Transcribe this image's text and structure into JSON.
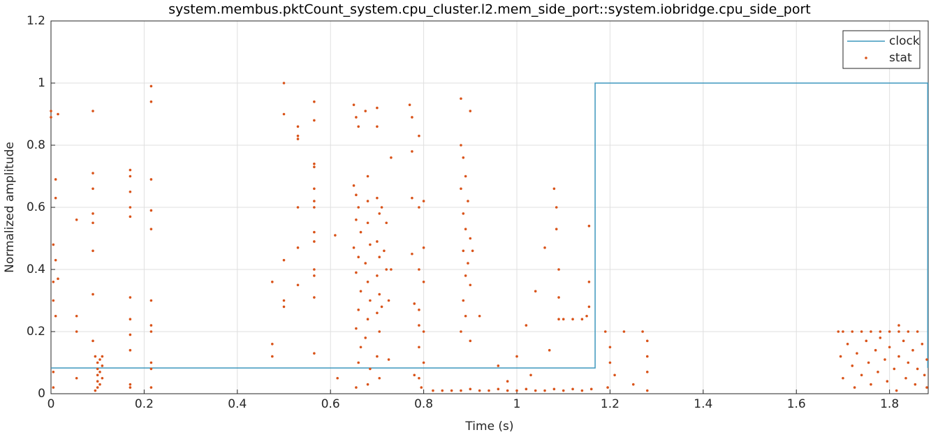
{
  "chart_data": {
    "type": "line",
    "title": "system.membus.pktCount_system.cpu_cluster.l2.mem_side_port::system.iobridge.cpu_side_port",
    "xlabel": "Time (s)",
    "ylabel": "Normalized amplitude",
    "xlim": [
      0,
      1.883
    ],
    "ylim": [
      0,
      1.2
    ],
    "xticks": [
      0,
      0.2,
      0.4,
      0.6,
      0.8,
      1,
      1.2,
      1.4,
      1.6,
      1.8
    ],
    "yticks": [
      0,
      0.2,
      0.4,
      0.6,
      0.8,
      1,
      1.2
    ],
    "grid": true,
    "legend": "northeast",
    "series": [
      {
        "name": "clock",
        "mode": "line",
        "color": "#3d97bd",
        "x": [
          0,
          1.168,
          1.168,
          1.882,
          1.882
        ],
        "values": [
          0.083,
          0.083,
          1,
          1,
          0.083
        ]
      },
      {
        "name": "stat",
        "mode": "markers",
        "color": "#d95319",
        "x": [
          0,
          0,
          0.005,
          0.005,
          0.005,
          0.005,
          0.005,
          0.01,
          0.01,
          0.01,
          0.01,
          0.015,
          0.015,
          0.055,
          0.055,
          0.055,
          0.055,
          0.09,
          0.09,
          0.09,
          0.09,
          0.09,
          0.09,
          0.09,
          0.09,
          0.095,
          0.1,
          0.1,
          0.1,
          0.1,
          0.1,
          0.105,
          0.105,
          0.105,
          0.11,
          0.11,
          0.11,
          0.095,
          0.17,
          0.17,
          0.17,
          0.17,
          0.17,
          0.17,
          0.17,
          0.17,
          0.17,
          0.17,
          0.17,
          0.215,
          0.215,
          0.215,
          0.215,
          0.215,
          0.215,
          0.215,
          0.215,
          0.215,
          0.215,
          0.215,
          0.475,
          0.475,
          0.475,
          0.5,
          0.5,
          0.5,
          0.5,
          0.5,
          0.53,
          0.53,
          0.53,
          0.53,
          0.53,
          0.53,
          0.565,
          0.565,
          0.565,
          0.565,
          0.565,
          0.565,
          0.565,
          0.565,
          0.565,
          0.565,
          0.565,
          0.565,
          0.565,
          0.61,
          0.615,
          0.65,
          0.655,
          0.66,
          0.65,
          0.655,
          0.66,
          0.655,
          0.665,
          0.65,
          0.66,
          0.655,
          0.665,
          0.66,
          0.655,
          0.665,
          0.66,
          0.655,
          0.675,
          0.68,
          0.68,
          0.68,
          0.685,
          0.675,
          0.68,
          0.685,
          0.68,
          0.675,
          0.685,
          0.68,
          0.7,
          0.7,
          0.7,
          0.705,
          0.7,
          0.705,
          0.7,
          0.705,
          0.7,
          0.705,
          0.7,
          0.705,
          0.71,
          0.715,
          0.71,
          0.72,
          0.72,
          0.725,
          0.725,
          0.73,
          0.73,
          0.77,
          0.775,
          0.775,
          0.775,
          0.775,
          0.78,
          0.78,
          0.79,
          0.79,
          0.79,
          0.79,
          0.79,
          0.79,
          0.79,
          0.795,
          0.8,
          0.8,
          0.8,
          0.8,
          0.8,
          0.82,
          0.84,
          0.86,
          0.88,
          0.9,
          0.92,
          0.94,
          0.96,
          0.98,
          1,
          1.02,
          1.04,
          1.06,
          1.08,
          1.1,
          1.12,
          1.14,
          1.16,
          0.88,
          0.9,
          0.88,
          0.885,
          0.89,
          0.88,
          0.895,
          0.885,
          0.89,
          0.9,
          0.885,
          0.895,
          0.89,
          0.9,
          0.885,
          0.89,
          0.88,
          0.9,
          0.92,
          0.905,
          0.96,
          0.98,
          1,
          1.02,
          1.03,
          1.04,
          1.06,
          1.07,
          1.08,
          1.085,
          1.085,
          1.09,
          1.09,
          1.09,
          1.1,
          1.12,
          1.14,
          1.155,
          1.155,
          1.155,
          1.15,
          1.19,
          1.2,
          1.2,
          1.21,
          1.195,
          1.23,
          1.25,
          1.27,
          1.28,
          1.28,
          1.28,
          1.28,
          1.69,
          1.7,
          1.72,
          1.74,
          1.76,
          1.78,
          1.8,
          1.82,
          1.84,
          1.86,
          1.695,
          1.7,
          1.71,
          1.72,
          1.725,
          1.73,
          1.74,
          1.75,
          1.755,
          1.76,
          1.77,
          1.775,
          1.78,
          1.79,
          1.795,
          1.8,
          1.81,
          1.815,
          1.82,
          1.83,
          1.835,
          1.84,
          1.85,
          1.855,
          1.86,
          1.87,
          1.875,
          1.88,
          1.88,
          1.82
        ],
        "values": [
          0.91,
          0.89,
          0.48,
          0.36,
          0.3,
          0.07,
          0.02,
          0.69,
          0.63,
          0.43,
          0.25,
          0.9,
          0.37,
          0.56,
          0.25,
          0.2,
          0.05,
          0.91,
          0.71,
          0.66,
          0.58,
          0.55,
          0.46,
          0.32,
          0.17,
          0.12,
          0.1,
          0.08,
          0.06,
          0.04,
          0.02,
          0.11,
          0.07,
          0.03,
          0.12,
          0.09,
          0.05,
          0.01,
          0.72,
          0.7,
          0.65,
          0.6,
          0.57,
          0.31,
          0.24,
          0.19,
          0.14,
          0.03,
          0.02,
          0.99,
          0.94,
          0.69,
          0.59,
          0.53,
          0.3,
          0.22,
          0.2,
          0.1,
          0.08,
          0.02,
          0.36,
          0.16,
          0.12,
          1,
          0.9,
          0.43,
          0.3,
          0.28,
          0.86,
          0.83,
          0.82,
          0.6,
          0.47,
          0.35,
          0.94,
          0.88,
          0.74,
          0.73,
          0.66,
          0.62,
          0.6,
          0.52,
          0.49,
          0.4,
          0.38,
          0.31,
          0.13,
          0.51,
          0.05,
          0.93,
          0.89,
          0.86,
          0.67,
          0.64,
          0.6,
          0.56,
          0.52,
          0.47,
          0.44,
          0.39,
          0.33,
          0.27,
          0.21,
          0.15,
          0.1,
          0.02,
          0.91,
          0.7,
          0.62,
          0.55,
          0.48,
          0.42,
          0.36,
          0.3,
          0.24,
          0.18,
          0.08,
          0.03,
          0.92,
          0.86,
          0.63,
          0.58,
          0.49,
          0.44,
          0.38,
          0.32,
          0.26,
          0.2,
          0.12,
          0.05,
          0.6,
          0.46,
          0.28,
          0.55,
          0.4,
          0.3,
          0.11,
          0.76,
          0.4,
          0.93,
          0.89,
          0.78,
          0.63,
          0.45,
          0.29,
          0.06,
          0.83,
          0.6,
          0.4,
          0.27,
          0.22,
          0.15,
          0.05,
          0.02,
          0.62,
          0.47,
          0.36,
          0.2,
          0.1,
          0.01,
          0.01,
          0.01,
          0.01,
          0.015,
          0.01,
          0.01,
          0.015,
          0.01,
          0.01,
          0.015,
          0.01,
          0.01,
          0.015,
          0.01,
          0.015,
          0.01,
          0.015,
          0.95,
          0.91,
          0.8,
          0.76,
          0.7,
          0.66,
          0.62,
          0.58,
          0.53,
          0.5,
          0.46,
          0.42,
          0.38,
          0.35,
          0.3,
          0.25,
          0.2,
          0.17,
          0.25,
          0.46,
          0.09,
          0.04,
          0.12,
          0.22,
          0.06,
          0.33,
          0.47,
          0.14,
          0.66,
          0.6,
          0.53,
          0.4,
          0.31,
          0.24,
          0.24,
          0.24,
          0.24,
          0.54,
          0.36,
          0.28,
          0.25,
          0.2,
          0.15,
          0.1,
          0.06,
          0.02,
          0.2,
          0.03,
          0.2,
          0.17,
          0.12,
          0.07,
          0.01,
          0.2,
          0.2,
          0.2,
          0.2,
          0.2,
          0.2,
          0.2,
          0.2,
          0.2,
          0.2,
          0.12,
          0.05,
          0.16,
          0.09,
          0.02,
          0.13,
          0.06,
          0.17,
          0.1,
          0.03,
          0.14,
          0.07,
          0.18,
          0.11,
          0.04,
          0.15,
          0.08,
          0.01,
          0.12,
          0.17,
          0.05,
          0.1,
          0.14,
          0.03,
          0.08,
          0.16,
          0.06,
          0.11,
          0.02,
          0.22
        ]
      }
    ]
  }
}
